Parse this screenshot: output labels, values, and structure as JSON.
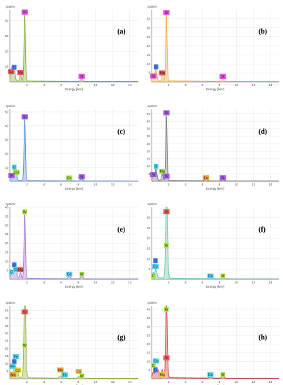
{
  "chart_data": [
    {
      "panel_label": "(a)",
      "ylabel": "cps/eV",
      "xlabel": "Energy [keV]",
      "type": "line",
      "color": "#79a82a",
      "x_ticks": [
        2,
        4,
        6,
        8,
        10,
        12,
        14
      ],
      "y_ticks": [
        10,
        20,
        30,
        40
      ],
      "ylim": [
        0,
        47
      ],
      "xlim": [
        0,
        15
      ],
      "peaks": [
        {
          "x": 0.15,
          "y": 4.0,
          "w": 0.12
        },
        {
          "x": 0.28,
          "y": 6.5,
          "w": 0.1
        },
        {
          "x": 0.52,
          "y": 9.0,
          "w": 0.1
        },
        {
          "x": 1.25,
          "y": 4.5,
          "w": 0.08
        },
        {
          "x": 1.74,
          "y": 44.0,
          "w": 0.08
        },
        {
          "x": 8.4,
          "y": 2.0,
          "w": 0.12
        }
      ],
      "tags": [
        {
          "text": "O",
          "color": "#4f7df5",
          "x": 0.52,
          "y": 9.5
        },
        {
          "text": "Na",
          "color": "#ef5a5a",
          "x": 0.15,
          "y": 6.6
        },
        {
          "text": "Mg",
          "color": "#ef5a5a",
          "x": 1.25,
          "y": 6.2
        },
        {
          "text": "Si",
          "color": "#e34ce8",
          "x": 1.74,
          "y": 45.5
        },
        {
          "text": "Si",
          "color": "#e34ce8",
          "x": 8.4,
          "y": 3.6
        }
      ]
    },
    {
      "panel_label": "(b)",
      "ylabel": "cps/eV",
      "xlabel": "Energy [keV]",
      "type": "line",
      "color": "#f3a52a",
      "x_ticks": [
        2,
        4,
        6,
        8,
        10,
        12,
        14
      ],
      "y_ticks": [
        5,
        10,
        15,
        20,
        25,
        30,
        35
      ],
      "ylim": [
        0,
        40
      ],
      "xlim": [
        0,
        15
      ],
      "peaks": [
        {
          "x": 0.2,
          "y": 3.5,
          "w": 0.1
        },
        {
          "x": 0.52,
          "y": 7.5,
          "w": 0.1
        },
        {
          "x": 1.25,
          "y": 4.0,
          "w": 0.08
        },
        {
          "x": 1.74,
          "y": 37.0,
          "w": 0.08
        },
        {
          "x": 8.4,
          "y": 1.5,
          "w": 0.12
        }
      ],
      "tags": [
        {
          "text": "O",
          "color": "#4f7df5",
          "x": 0.52,
          "y": 8.3
        },
        {
          "text": "Si",
          "color": "#e34ce8",
          "x": 0.2,
          "y": 3.2
        },
        {
          "text": "Mg",
          "color": "#ef5a5a",
          "x": 1.25,
          "y": 5.0
        },
        {
          "text": "Si",
          "color": "#e34ce8",
          "x": 1.74,
          "y": 38.5
        },
        {
          "text": "Si",
          "color": "#e34ce8",
          "x": 8.4,
          "y": 3.0
        }
      ]
    },
    {
      "panel_label": "(c)",
      "ylabel": "cps/eV",
      "xlabel": "Energy [keV]",
      "type": "line",
      "color": "#4b85d6",
      "x_ticks": [
        2,
        4,
        6,
        8,
        10,
        12,
        14
      ],
      "y_ticks": [
        10,
        20,
        30,
        40,
        50
      ],
      "ylim": [
        0,
        52
      ],
      "xlim": [
        0,
        15
      ],
      "peaks": [
        {
          "x": 0.2,
          "y": 4.0,
          "w": 0.1
        },
        {
          "x": 0.52,
          "y": 9.0,
          "w": 0.1
        },
        {
          "x": 0.78,
          "y": 5.0,
          "w": 0.08
        },
        {
          "x": 1.74,
          "y": 45.0,
          "w": 0.08
        },
        {
          "x": 6.93,
          "y": 1.2,
          "w": 0.12
        },
        {
          "x": 8.4,
          "y": 1.6,
          "w": 0.12
        }
      ],
      "tags": [
        {
          "text": "O",
          "color": "#4fd4f0",
          "x": 0.52,
          "y": 10.2
        },
        {
          "text": "Co",
          "color": "#a6e83a",
          "x": 0.78,
          "y": 6.6
        },
        {
          "text": "Si",
          "color": "#a35ce8",
          "x": 0.2,
          "y": 4.2
        },
        {
          "text": "Si",
          "color": "#a35ce8",
          "x": 1.74,
          "y": 46.5
        },
        {
          "text": "Co",
          "color": "#a6e83a",
          "x": 6.93,
          "y": 2.5
        },
        {
          "text": "Si",
          "color": "#a35ce8",
          "x": 8.4,
          "y": 3.2
        }
      ]
    },
    {
      "panel_label": "(d)",
      "ylabel": "cps/eV",
      "xlabel": "Energy [keV]",
      "type": "line",
      "color": "#6a6a6a",
      "x_ticks": [
        2,
        4,
        6,
        8,
        10,
        12,
        14
      ],
      "y_ticks": [
        5,
        10,
        15,
        20,
        25,
        30,
        35,
        40,
        45
      ],
      "ylim": [
        0,
        48
      ],
      "xlim": [
        0,
        15
      ],
      "peaks": [
        {
          "x": 0.2,
          "y": 4.0,
          "w": 0.1
        },
        {
          "x": 0.52,
          "y": 9.0,
          "w": 0.1
        },
        {
          "x": 1.25,
          "y": 5.0,
          "w": 0.08
        },
        {
          "x": 1.74,
          "y": 44.0,
          "w": 0.08
        },
        {
          "x": 6.4,
          "y": 1.0,
          "w": 0.12
        },
        {
          "x": 8.4,
          "y": 1.0,
          "w": 0.12
        }
      ],
      "tags": [
        {
          "text": "Si",
          "color": "#a35ce8",
          "x": 0.2,
          "y": 4.4
        },
        {
          "text": "O",
          "color": "#4fd4f0",
          "x": 0.52,
          "y": 10.0
        },
        {
          "text": "Mg",
          "color": "#a6e83a",
          "x": 1.25,
          "y": 6.6
        },
        {
          "text": "Si",
          "color": "#a35ce8",
          "x": 1.74,
          "y": 45.6
        },
        {
          "text": "Si",
          "color": "#a35ce8",
          "x": 1.74,
          "y": 3.4
        },
        {
          "text": "Fe",
          "color": "#f3a52a",
          "x": 6.4,
          "y": 2.4
        },
        {
          "text": "Si",
          "color": "#a35ce8",
          "x": 8.4,
          "y": 2.4
        }
      ]
    },
    {
      "panel_label": "(e)",
      "ylabel": "cps/eV",
      "xlabel": "Energy [keV]",
      "type": "line",
      "color": "#9b6bd6",
      "x_ticks": [
        2,
        4,
        6,
        8,
        10,
        12,
        14
      ],
      "y_ticks": [
        5,
        10,
        15,
        20,
        25,
        30,
        35,
        40
      ],
      "ylim": [
        0,
        40
      ],
      "xlim": [
        0,
        15
      ],
      "peaks": [
        {
          "x": 0.2,
          "y": 3.0,
          "w": 0.1
        },
        {
          "x": 0.52,
          "y": 7.0,
          "w": 0.1
        },
        {
          "x": 0.78,
          "y": 4.0,
          "w": 0.08
        },
        {
          "x": 1.25,
          "y": 3.0,
          "w": 0.08
        },
        {
          "x": 1.74,
          "y": 36.0,
          "w": 0.08
        },
        {
          "x": 6.93,
          "y": 1.6,
          "w": 0.12
        },
        {
          "x": 8.4,
          "y": 1.6,
          "w": 0.12
        }
      ],
      "tags": [
        {
          "text": "C",
          "color": "#4fd4f0",
          "x": 0.2,
          "y": 4.0
        },
        {
          "text": "O",
          "color": "#4f7df5",
          "x": 0.52,
          "y": 8.0
        },
        {
          "text": "Co",
          "color": "#4fd4f0",
          "x": 0.78,
          "y": 5.4
        },
        {
          "text": "Mg",
          "color": "#ef5a5a",
          "x": 1.25,
          "y": 5.4
        },
        {
          "text": "W",
          "color": "#a6e83a",
          "x": 1.74,
          "y": 37.4
        },
        {
          "text": "Co",
          "color": "#4fd4f0",
          "x": 6.93,
          "y": 2.8
        },
        {
          "text": "W",
          "color": "#a6e83a",
          "x": 8.4,
          "y": 2.8
        }
      ]
    },
    {
      "panel_label": "(f)",
      "ylabel": "cps/eV",
      "xlabel": "Energy [keV]",
      "type": "line",
      "color": "#55c2a2",
      "x_ticks": [
        2,
        4,
        6,
        8,
        10,
        12,
        14
      ],
      "y_ticks": [
        5,
        10,
        15,
        20,
        25,
        30
      ],
      "ylim": [
        0,
        35
      ],
      "xlim": [
        0,
        15
      ],
      "peaks": [
        {
          "x": 0.2,
          "y": 2.5,
          "w": 0.1
        },
        {
          "x": 0.52,
          "y": 5.0,
          "w": 0.1
        },
        {
          "x": 1.74,
          "y": 32.0,
          "w": 0.08
        },
        {
          "x": 1.78,
          "y": 18.0,
          "w": 0.12
        },
        {
          "x": 6.93,
          "y": 1.0,
          "w": 0.12
        },
        {
          "x": 8.4,
          "y": 1.0,
          "w": 0.12
        }
      ],
      "tags": [
        {
          "text": "Si",
          "color": "#ef5a5a",
          "x": 1.74,
          "y": 32.8
        },
        {
          "text": "W",
          "color": "#a6e83a",
          "x": 1.74,
          "y": 16.4
        },
        {
          "text": "O",
          "color": "#4f7df5",
          "x": 0.45,
          "y": 9.0
        },
        {
          "text": "Co",
          "color": "#4fd4f0",
          "x": 0.45,
          "y": 6.2
        },
        {
          "text": "C",
          "color": "#a6e83a",
          "x": 0.2,
          "y": 1.6
        },
        {
          "text": "Co",
          "color": "#4fd4f0",
          "x": 6.93,
          "y": 1.6
        },
        {
          "text": "W",
          "color": "#a6e83a",
          "x": 8.4,
          "y": 1.6
        }
      ]
    },
    {
      "panel_label": "(g)",
      "ylabel": "cps/eV",
      "xlabel": "Energy [keV]",
      "type": "line",
      "color": "#8fae3a",
      "x_ticks": [
        2,
        4,
        6,
        8,
        10,
        12,
        14
      ],
      "y_ticks": [
        5,
        10,
        15,
        20,
        25,
        30,
        35,
        40,
        45
      ],
      "ylim": [
        0,
        48
      ],
      "xlim": [
        0,
        15
      ],
      "peaks": [
        {
          "x": 0.2,
          "y": 3.5,
          "w": 0.1
        },
        {
          "x": 0.52,
          "y": 8.0,
          "w": 0.1
        },
        {
          "x": 0.71,
          "y": 6.0,
          "w": 0.08
        },
        {
          "x": 0.93,
          "y": 4.0,
          "w": 0.08
        },
        {
          "x": 1.74,
          "y": 43.0,
          "w": 0.08
        },
        {
          "x": 1.78,
          "y": 24.0,
          "w": 0.12
        },
        {
          "x": 5.9,
          "y": 1.5,
          "w": 0.12
        },
        {
          "x": 6.4,
          "y": 1.2,
          "w": 0.12
        },
        {
          "x": 8.05,
          "y": 1.2,
          "w": 0.12
        },
        {
          "x": 8.4,
          "y": 1.0,
          "w": 0.12
        }
      ],
      "tags": [
        {
          "text": "Si",
          "color": "#ef5a5a",
          "x": 1.74,
          "y": 44.0
        },
        {
          "text": "W",
          "color": "#a6e83a",
          "x": 1.74,
          "y": 22.0
        },
        {
          "text": "Fe",
          "color": "#4fd4f0",
          "x": 0.71,
          "y": 14.5
        },
        {
          "text": "O",
          "color": "#4f7df5",
          "x": 0.52,
          "y": 11.2
        },
        {
          "text": "Fe",
          "color": "#4fd4f0",
          "x": 0.3,
          "y": 8.2
        },
        {
          "text": "Cu",
          "color": "#e8cd2a",
          "x": 0.93,
          "y": 5.6
        },
        {
          "text": "Mn",
          "color": "#f3a52a",
          "x": 0.4,
          "y": 2.6
        },
        {
          "text": "Mn",
          "color": "#f3a52a",
          "x": 5.9,
          "y": 5.8
        },
        {
          "text": "Fe",
          "color": "#4fd4f0",
          "x": 6.4,
          "y": 2.6
        },
        {
          "text": "Cu",
          "color": "#e8cd2a",
          "x": 8.05,
          "y": 4.8
        },
        {
          "text": "W",
          "color": "#a6e83a",
          "x": 8.4,
          "y": 1.8
        }
      ]
    },
    {
      "panel_label": "(h)",
      "ylabel": "cps/eV",
      "xlabel": "Energy [keV]",
      "type": "line",
      "color": "#d02a2a",
      "x_ticks": [
        2,
        4,
        6,
        8,
        10,
        12,
        14
      ],
      "y_ticks": [
        5,
        10,
        15,
        20,
        25,
        30,
        35,
        40
      ],
      "ylim": [
        0,
        42
      ],
      "xlim": [
        0,
        15
      ],
      "peaks": [
        {
          "x": 0.2,
          "y": 3.0,
          "w": 0.1
        },
        {
          "x": 0.52,
          "y": 6.0,
          "w": 0.1
        },
        {
          "x": 0.78,
          "y": 4.0,
          "w": 0.08
        },
        {
          "x": 1.25,
          "y": 4.5,
          "w": 0.08
        },
        {
          "x": 1.74,
          "y": 39.0,
          "w": 0.08
        },
        {
          "x": 1.78,
          "y": 10.0,
          "w": 0.12
        },
        {
          "x": 6.93,
          "y": 1.2,
          "w": 0.12
        },
        {
          "x": 8.4,
          "y": 1.2,
          "w": 0.12
        }
      ],
      "tags": [
        {
          "text": "W",
          "color": "#a6e83a",
          "x": 1.74,
          "y": 40.0
        },
        {
          "text": "Si",
          "color": "#ef5a5a",
          "x": 1.74,
          "y": 12.0
        },
        {
          "text": "Co",
          "color": "#4fd4f0",
          "x": 0.52,
          "y": 10.2
        },
        {
          "text": "C",
          "color": "#a6e83a",
          "x": 0.2,
          "y": 7.6
        },
        {
          "text": "O",
          "color": "#4f7df5",
          "x": 0.45,
          "y": 5.0
        },
        {
          "text": "Mg",
          "color": "#e8cd2a",
          "x": 1.25,
          "y": 2.4
        },
        {
          "text": "Co",
          "color": "#4fd4f0",
          "x": 6.93,
          "y": 2.4
        },
        {
          "text": "W",
          "color": "#a6e83a",
          "x": 8.4,
          "y": 2.4
        }
      ]
    }
  ]
}
